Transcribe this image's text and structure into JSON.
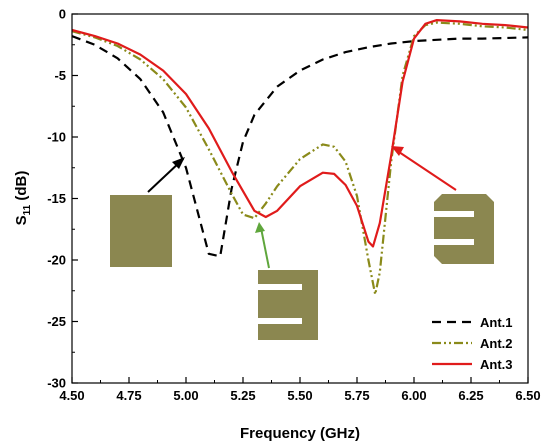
{
  "chart_data": {
    "type": "line",
    "xlabel": "Frequency (GHz)",
    "ylabel": {
      "base": "S",
      "sub": "11",
      "rest": " (dB)"
    },
    "xlim": [
      4.5,
      6.5
    ],
    "ylim": [
      -30,
      0
    ],
    "xticks": [
      "4.50",
      "4.75",
      "5.00",
      "5.25",
      "5.50",
      "5.75",
      "6.00",
      "6.25",
      "6.50"
    ],
    "yticks": [
      "0",
      "-5",
      "-10",
      "-15",
      "-20",
      "-25",
      "-30"
    ],
    "grid": false,
    "legend_position": "bottom-right",
    "colors": {
      "ant1": "#000000",
      "ant2": "#8a8a1a",
      "ant3": "#e01b1b",
      "patch": "#8b8750"
    },
    "series": [
      {
        "name": "Ant.1",
        "style": "dashed",
        "color": "#000000",
        "x": [
          4.5,
          4.6,
          4.7,
          4.8,
          4.9,
          5.0,
          5.05,
          5.1,
          5.15,
          5.2,
          5.25,
          5.3,
          5.4,
          5.5,
          5.6,
          5.7,
          5.8,
          5.9,
          6.0,
          6.1,
          6.2,
          6.3,
          6.4,
          6.5
        ],
        "y": [
          -1.8,
          -2.5,
          -3.6,
          -5.3,
          -8.0,
          -12.5,
          -16.0,
          -19.5,
          -19.7,
          -14.2,
          -10.4,
          -8.2,
          -5.9,
          -4.6,
          -3.7,
          -3.1,
          -2.7,
          -2.4,
          -2.2,
          -2.1,
          -2.0,
          -2.0,
          -1.95,
          -1.9
        ]
      },
      {
        "name": "Ant.2",
        "style": "dash-dot-dot",
        "color": "#8a8a1a",
        "x": [
          4.5,
          4.6,
          4.7,
          4.8,
          4.9,
          5.0,
          5.1,
          5.2,
          5.25,
          5.3,
          5.35,
          5.4,
          5.5,
          5.6,
          5.65,
          5.7,
          5.75,
          5.8,
          5.83,
          5.85,
          5.9,
          5.95,
          6.0,
          6.05,
          6.1,
          6.2,
          6.3,
          6.4,
          6.5
        ],
        "y": [
          -1.4,
          -1.9,
          -2.6,
          -3.7,
          -5.3,
          -7.6,
          -11.0,
          -14.6,
          -16.3,
          -16.6,
          -15.4,
          -14.0,
          -11.8,
          -10.6,
          -10.8,
          -12.0,
          -14.8,
          -20.0,
          -22.8,
          -21.0,
          -12.0,
          -5.0,
          -1.8,
          -0.9,
          -0.7,
          -0.8,
          -1.0,
          -1.1,
          -1.3
        ]
      },
      {
        "name": "Ant.3",
        "style": "solid",
        "color": "#e01b1b",
        "x": [
          4.5,
          4.6,
          4.7,
          4.8,
          4.9,
          5.0,
          5.1,
          5.2,
          5.3,
          5.35,
          5.4,
          5.5,
          5.6,
          5.65,
          5.7,
          5.75,
          5.8,
          5.82,
          5.85,
          5.9,
          5.95,
          6.0,
          6.05,
          6.1,
          6.2,
          6.3,
          6.4,
          6.5
        ],
        "y": [
          -1.3,
          -1.8,
          -2.4,
          -3.3,
          -4.6,
          -6.5,
          -9.3,
          -12.8,
          -16.0,
          -16.5,
          -16.0,
          -14.0,
          -12.9,
          -13.0,
          -13.9,
          -15.6,
          -18.5,
          -18.9,
          -17.0,
          -11.5,
          -5.5,
          -2.0,
          -0.8,
          -0.5,
          -0.6,
          -0.8,
          -0.9,
          -1.1
        ]
      }
    ]
  }
}
